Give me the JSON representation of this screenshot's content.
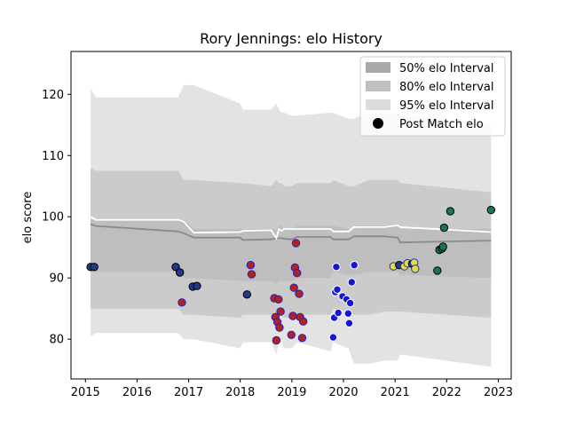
{
  "chart_data": {
    "type": "scatter",
    "title": "Rory Jennings: elo History",
    "xlabel": "",
    "ylabel": "elo score",
    "xlim": [
      2014.72,
      2023.25
    ],
    "ylim": [
      73.5,
      127.0
    ],
    "xticks": [
      2015,
      2016,
      2017,
      2018,
      2019,
      2020,
      2021,
      2022,
      2023
    ],
    "yticks": [
      80,
      90,
      100,
      110,
      120
    ],
    "grid": false,
    "legend_position": "top-right",
    "legend": [
      {
        "label": "50% elo Interval",
        "kind": "band",
        "color": "#a9a9a9"
      },
      {
        "label": "80% elo Interval",
        "kind": "band",
        "color": "#c0c0c0"
      },
      {
        "label": "95% elo Interval",
        "kind": "band",
        "color": "#dcdcdc"
      },
      {
        "label": "Post Match elo",
        "kind": "marker",
        "color": "#000000"
      }
    ],
    "colors": {
      "band95": "#e3e3e3",
      "band80": "#cbcbcb",
      "band50": "#bebebe",
      "mean_line": "#ffffff",
      "median_line": "#8a8a8a"
    },
    "bands": {
      "x": [
        2015.1,
        2015.2,
        2016.8,
        2016.9,
        2017.1,
        2018.0,
        2018.05,
        2018.6,
        2018.7,
        2018.75,
        2018.8,
        2018.85,
        2019.0,
        2019.1,
        2019.75,
        2019.8,
        2020.1,
        2020.2,
        2020.5,
        2020.8,
        2021.05,
        2021.1,
        2022.86
      ],
      "p95_high": [
        121.0,
        119.5,
        119.5,
        121.5,
        121.5,
        118.5,
        117.5,
        117.5,
        118.5,
        117.5,
        117.0,
        117.0,
        116.5,
        116.5,
        117.0,
        117.0,
        116.0,
        116.0,
        117.0,
        117.0,
        117.0,
        116.5,
        115.0
      ],
      "p95_low": [
        80.5,
        81.0,
        81.0,
        80.0,
        80.0,
        78.5,
        79.5,
        79.5,
        77.5,
        79.5,
        79.5,
        78.5,
        78.5,
        79.5,
        78.0,
        79.5,
        78.5,
        76.0,
        76.0,
        76.5,
        76.5,
        77.5,
        75.5
      ],
      "p80_high": [
        108.0,
        107.5,
        107.5,
        106.0,
        106.0,
        105.5,
        105.5,
        105.0,
        106.0,
        105.5,
        105.5,
        105.0,
        105.0,
        105.5,
        105.5,
        106.0,
        105.0,
        105.0,
        106.0,
        106.0,
        106.0,
        105.5,
        104.0
      ],
      "p80_low": [
        85.0,
        85.0,
        85.0,
        84.0,
        84.0,
        83.5,
        84.0,
        84.0,
        83.5,
        84.0,
        84.0,
        83.5,
        83.5,
        84.0,
        84.0,
        85.0,
        84.5,
        84.0,
        84.0,
        84.5,
        84.5,
        84.5,
        83.5
      ],
      "p50_high": [
        99.5,
        99.5,
        99.5,
        99.5,
        98.0,
        98.0,
        98.0,
        98.0,
        98.0,
        98.5,
        98.5,
        98.0,
        98.0,
        98.5,
        98.5,
        98.5,
        98.0,
        98.0,
        98.5,
        98.5,
        98.5,
        98.0,
        98.0
      ],
      "p50_low": [
        91.0,
        91.0,
        91.0,
        90.0,
        90.0,
        89.5,
        89.5,
        89.5,
        89.0,
        89.5,
        89.5,
        89.5,
        89.5,
        90.0,
        90.0,
        91.0,
        90.5,
        90.5,
        91.0,
        91.0,
        91.0,
        90.5,
        90.0
      ],
      "mean": [
        100.0,
        99.5,
        99.5,
        99.2,
        97.4,
        97.5,
        97.7,
        97.8,
        96.5,
        98.0,
        97.7,
        98.0,
        98.0,
        98.0,
        98.0,
        97.6,
        97.6,
        98.3,
        98.3,
        98.3,
        98.6,
        98.3,
        97.5
      ],
      "median": [
        98.8,
        98.5,
        97.6,
        97.3,
        96.6,
        96.6,
        96.2,
        96.3,
        96.5,
        96.5,
        96.5,
        96.4,
        96.3,
        96.7,
        96.7,
        96.3,
        96.3,
        96.8,
        96.8,
        96.8,
        96.6,
        95.8,
        96.1
      ]
    },
    "points": [
      {
        "x": 2015.1,
        "y": 91.8,
        "fill": "#1f3a8a",
        "edge": "#000000"
      },
      {
        "x": 2015.17,
        "y": 91.8,
        "fill": "#1f3a8a",
        "edge": "#000000"
      },
      {
        "x": 2016.75,
        "y": 91.8,
        "fill": "#1f3a8a",
        "edge": "#000000"
      },
      {
        "x": 2016.83,
        "y": 90.9,
        "fill": "#1f3a8a",
        "edge": "#000000"
      },
      {
        "x": 2016.87,
        "y": 86.0,
        "fill": "#b22222",
        "edge": "#2020c0"
      },
      {
        "x": 2017.08,
        "y": 88.6,
        "fill": "#1f3a8a",
        "edge": "#000000"
      },
      {
        "x": 2017.16,
        "y": 88.7,
        "fill": "#1f3a8a",
        "edge": "#000000"
      },
      {
        "x": 2018.13,
        "y": 87.3,
        "fill": "#1f3a8a",
        "edge": "#000000"
      },
      {
        "x": 2018.2,
        "y": 92.1,
        "fill": "#b22222",
        "edge": "#2020c0"
      },
      {
        "x": 2018.22,
        "y": 90.6,
        "fill": "#b22222",
        "edge": "#2020c0"
      },
      {
        "x": 2018.66,
        "y": 86.7,
        "fill": "#b22222",
        "edge": "#2020c0"
      },
      {
        "x": 2018.68,
        "y": 83.6,
        "fill": "#b22222",
        "edge": "#2020c0"
      },
      {
        "x": 2018.7,
        "y": 79.8,
        "fill": "#b22222",
        "edge": "#2020c0"
      },
      {
        "x": 2018.72,
        "y": 82.8,
        "fill": "#b22222",
        "edge": "#2020c0"
      },
      {
        "x": 2018.74,
        "y": 86.5,
        "fill": "#b22222",
        "edge": "#2020c0"
      },
      {
        "x": 2018.76,
        "y": 81.9,
        "fill": "#b22222",
        "edge": "#2020c0"
      },
      {
        "x": 2018.78,
        "y": 84.5,
        "fill": "#b22222",
        "edge": "#2020c0"
      },
      {
        "x": 2018.99,
        "y": 80.7,
        "fill": "#b22222",
        "edge": "#2020c0"
      },
      {
        "x": 2019.02,
        "y": 83.8,
        "fill": "#b22222",
        "edge": "#2020c0"
      },
      {
        "x": 2019.04,
        "y": 88.4,
        "fill": "#b22222",
        "edge": "#2020c0"
      },
      {
        "x": 2019.06,
        "y": 91.7,
        "fill": "#b22222",
        "edge": "#2020c0"
      },
      {
        "x": 2019.08,
        "y": 95.7,
        "fill": "#b22222",
        "edge": "#2020c0"
      },
      {
        "x": 2019.1,
        "y": 90.8,
        "fill": "#b22222",
        "edge": "#2020c0"
      },
      {
        "x": 2019.14,
        "y": 87.4,
        "fill": "#b22222",
        "edge": "#2020c0"
      },
      {
        "x": 2019.16,
        "y": 83.6,
        "fill": "#b22222",
        "edge": "#2020c0"
      },
      {
        "x": 2019.2,
        "y": 80.2,
        "fill": "#b22222",
        "edge": "#2020c0"
      },
      {
        "x": 2019.22,
        "y": 82.9,
        "fill": "#b22222",
        "edge": "#2020c0"
      },
      {
        "x": 2019.8,
        "y": 80.3,
        "fill": "#1515d8",
        "edge": "#ffffff"
      },
      {
        "x": 2019.82,
        "y": 83.5,
        "fill": "#1515d8",
        "edge": "#ffffff"
      },
      {
        "x": 2019.84,
        "y": 87.7,
        "fill": "#1515d8",
        "edge": "#ffffff"
      },
      {
        "x": 2019.86,
        "y": 91.8,
        "fill": "#1515d8",
        "edge": "#ffffff"
      },
      {
        "x": 2019.88,
        "y": 88.1,
        "fill": "#1515d8",
        "edge": "#ffffff"
      },
      {
        "x": 2019.9,
        "y": 84.3,
        "fill": "#1515d8",
        "edge": "#ffffff"
      },
      {
        "x": 2019.98,
        "y": 87.0,
        "fill": "#1515d8",
        "edge": "#ffffff"
      },
      {
        "x": 2020.06,
        "y": 86.5,
        "fill": "#1515d8",
        "edge": "#ffffff"
      },
      {
        "x": 2020.09,
        "y": 84.2,
        "fill": "#1515d8",
        "edge": "#ffffff"
      },
      {
        "x": 2020.11,
        "y": 82.6,
        "fill": "#1515d8",
        "edge": "#ffffff"
      },
      {
        "x": 2020.13,
        "y": 85.9,
        "fill": "#1515d8",
        "edge": "#ffffff"
      },
      {
        "x": 2020.16,
        "y": 89.3,
        "fill": "#1515d8",
        "edge": "#ffffff"
      },
      {
        "x": 2020.21,
        "y": 92.1,
        "fill": "#1515d8",
        "edge": "#ffffff"
      },
      {
        "x": 2020.97,
        "y": 91.9,
        "fill": "#e8d84a",
        "edge": "#1f3a8a"
      },
      {
        "x": 2021.08,
        "y": 92.1,
        "fill": "#1f3a8a",
        "edge": "#000000"
      },
      {
        "x": 2021.18,
        "y": 91.9,
        "fill": "#e8d84a",
        "edge": "#1f3a8a"
      },
      {
        "x": 2021.24,
        "y": 92.4,
        "fill": "#e8d84a",
        "edge": "#1f3a8a"
      },
      {
        "x": 2021.33,
        "y": 92.3,
        "fill": "#1f3a8a",
        "edge": "#000000"
      },
      {
        "x": 2021.37,
        "y": 92.5,
        "fill": "#e8d84a",
        "edge": "#1f3a8a"
      },
      {
        "x": 2021.39,
        "y": 91.5,
        "fill": "#e8d84a",
        "edge": "#1f3a8a"
      },
      {
        "x": 2021.82,
        "y": 91.2,
        "fill": "#157a52",
        "edge": "#000000"
      },
      {
        "x": 2021.86,
        "y": 94.6,
        "fill": "#157a52",
        "edge": "#000000"
      },
      {
        "x": 2021.91,
        "y": 94.8,
        "fill": "#157a52",
        "edge": "#000000"
      },
      {
        "x": 2021.93,
        "y": 95.1,
        "fill": "#157a52",
        "edge": "#000000"
      },
      {
        "x": 2021.95,
        "y": 98.2,
        "fill": "#157a52",
        "edge": "#000000"
      },
      {
        "x": 2022.07,
        "y": 100.9,
        "fill": "#157a52",
        "edge": "#000000"
      },
      {
        "x": 2022.86,
        "y": 101.1,
        "fill": "#157a52",
        "edge": "#000000"
      }
    ]
  }
}
